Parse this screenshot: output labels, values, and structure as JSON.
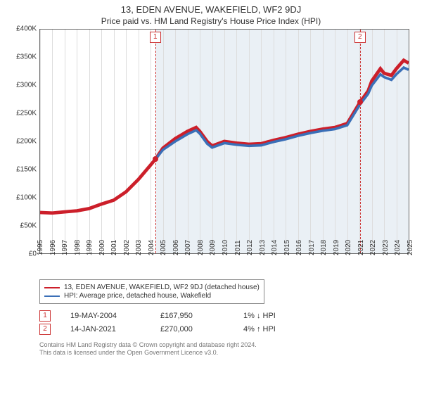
{
  "title_line1": "13, EDEN AVENUE, WAKEFIELD, WF2 9DJ",
  "title_line2": "Price paid vs. HM Land Registry's House Price Index (HPI)",
  "chart": {
    "type": "line",
    "background_color": "#ffffff",
    "axis_color": "#666666",
    "grid_color": "#dddddd",
    "shade_color": "rgba(180,200,220,0.28)",
    "shade_from_year": 2004.38,
    "x_years": [
      1995,
      1996,
      1997,
      1998,
      1999,
      2000,
      2001,
      2002,
      2003,
      2004,
      2005,
      2006,
      2007,
      2008,
      2009,
      2010,
      2011,
      2012,
      2013,
      2014,
      2015,
      2016,
      2017,
      2018,
      2019,
      2020,
      2021,
      2022,
      2023,
      2024,
      2025
    ],
    "xlim": [
      1995,
      2025
    ],
    "ylim": [
      0,
      400000
    ],
    "ytick_step": 50000,
    "y_tick_labels": [
      "£0",
      "£50K",
      "£100K",
      "£150K",
      "£200K",
      "£250K",
      "£300K",
      "£350K",
      "£400K"
    ],
    "tick_fontsize": 10,
    "series": [
      {
        "name": "13, EDEN AVENUE, WAKEFIELD, WF2 9DJ (detached house)",
        "color": "#cc1f2a",
        "line_width": 1.6,
        "data": [
          [
            1995,
            73000
          ],
          [
            1996,
            72000
          ],
          [
            1997,
            74000
          ],
          [
            1998,
            76000
          ],
          [
            1999,
            80000
          ],
          [
            2000,
            88000
          ],
          [
            2001,
            95000
          ],
          [
            2002,
            110000
          ],
          [
            2003,
            132000
          ],
          [
            2004,
            158000
          ],
          [
            2004.38,
            167950
          ],
          [
            2005,
            188000
          ],
          [
            2006,
            205000
          ],
          [
            2007,
            218000
          ],
          [
            2007.7,
            225000
          ],
          [
            2008,
            218000
          ],
          [
            2008.6,
            200000
          ],
          [
            2009,
            192000
          ],
          [
            2010,
            200000
          ],
          [
            2011,
            197000
          ],
          [
            2012,
            195000
          ],
          [
            2013,
            196000
          ],
          [
            2014,
            202000
          ],
          [
            2015,
            207000
          ],
          [
            2016,
            213000
          ],
          [
            2017,
            218000
          ],
          [
            2018,
            222000
          ],
          [
            2019,
            225000
          ],
          [
            2020,
            232000
          ],
          [
            2021.04,
            270000
          ],
          [
            2021.7,
            290000
          ],
          [
            2022,
            308000
          ],
          [
            2022.7,
            330000
          ],
          [
            2023,
            322000
          ],
          [
            2023.6,
            318000
          ],
          [
            2024,
            330000
          ],
          [
            2024.6,
            345000
          ],
          [
            2025,
            340000
          ]
        ]
      },
      {
        "name": "HPI: Average price, detached house, Wakefield",
        "color": "#3a6fb7",
        "line_width": 1.2,
        "data": [
          [
            2004.38,
            167950
          ],
          [
            2005,
            185000
          ],
          [
            2006,
            200000
          ],
          [
            2007,
            213000
          ],
          [
            2007.7,
            220000
          ],
          [
            2008,
            214000
          ],
          [
            2008.6,
            196000
          ],
          [
            2009,
            189000
          ],
          [
            2010,
            197000
          ],
          [
            2011,
            194000
          ],
          [
            2012,
            192000
          ],
          [
            2013,
            193000
          ],
          [
            2014,
            199000
          ],
          [
            2015,
            204000
          ],
          [
            2016,
            210000
          ],
          [
            2017,
            215000
          ],
          [
            2018,
            219000
          ],
          [
            2019,
            222000
          ],
          [
            2020,
            229000
          ],
          [
            2021.04,
            266000
          ],
          [
            2021.7,
            285000
          ],
          [
            2022,
            300000
          ],
          [
            2022.7,
            320000
          ],
          [
            2023,
            315000
          ],
          [
            2023.6,
            310000
          ],
          [
            2024,
            320000
          ],
          [
            2024.6,
            332000
          ],
          [
            2025,
            328000
          ]
        ]
      }
    ],
    "sale_markers": [
      {
        "index": "1",
        "year": 2004.38,
        "price": 167950,
        "color": "#cc1f2a"
      },
      {
        "index": "2",
        "year": 2021.04,
        "price": 270000,
        "color": "#cc1f2a"
      }
    ]
  },
  "legend": {
    "border_color": "#888888",
    "items": [
      {
        "label": "13, EDEN AVENUE, WAKEFIELD, WF2 9DJ (detached house)",
        "color": "#cc1f2a"
      },
      {
        "label": "HPI: Average price, detached house, Wakefield",
        "color": "#3a6fb7"
      }
    ]
  },
  "sales_table": {
    "rows": [
      {
        "index": "1",
        "date": "19-MAY-2004",
        "price": "£167,950",
        "hpi_delta": "1%",
        "hpi_dir": "down",
        "hpi_suffix": "HPI"
      },
      {
        "index": "2",
        "date": "14-JAN-2021",
        "price": "£270,000",
        "hpi_delta": "4%",
        "hpi_dir": "up",
        "hpi_suffix": "HPI"
      }
    ],
    "marker_border_color": "#cc3333"
  },
  "footer_line1": "Contains HM Land Registry data © Crown copyright and database right 2024.",
  "footer_line2": "This data is licensed under the Open Government Licence v3.0.",
  "arrows": {
    "up": "↑",
    "down": "↓"
  }
}
